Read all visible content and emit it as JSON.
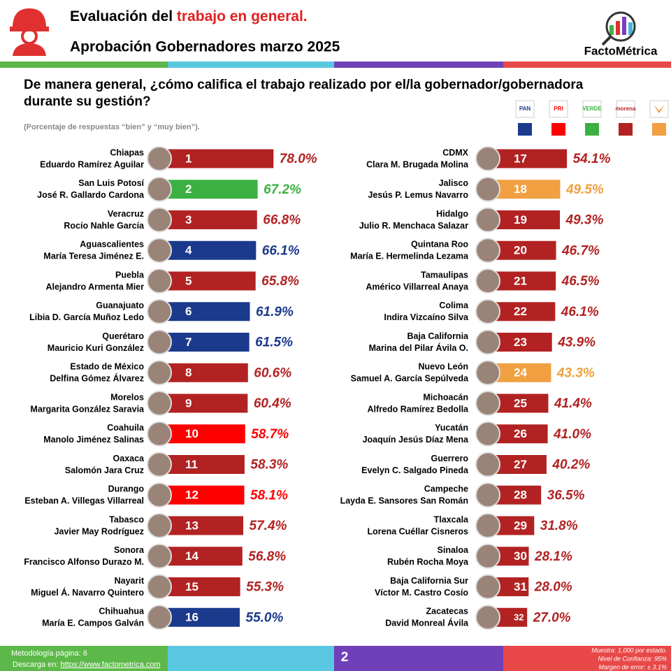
{
  "header": {
    "title_parts": [
      "Evaluación del ",
      "trabajo en general."
    ],
    "subtitle": "Aprobación Gobernadores marzo 2025",
    "brand": "FactoMétrica"
  },
  "chart_data": {
    "type": "bar",
    "orientation": "horizontal",
    "title": "De manera general, ¿cómo califica el trabajo realizado por el/la gobernador/gobernadora durante su gestión?",
    "subtitle": "(Porcentaje de respuestas “bien” y “muy bien”).",
    "xlim": [
      0,
      100
    ],
    "legend": [
      {
        "label": "PAN",
        "color": "#1b3a8c"
      },
      {
        "label": "PRI",
        "color": "#ff0000"
      },
      {
        "label": "VERDE",
        "color": "#3cb043"
      },
      {
        "label": "morena",
        "color": "#b22222"
      },
      {
        "color": "#f0a040"
      }
    ],
    "rows": [
      {
        "state": "Chiapas",
        "name": "Eduardo Ramírez Aguilar",
        "rank": 1,
        "value": 78.0,
        "value_label": "78.0%",
        "color": "#b22222"
      },
      {
        "state": "San Luis Potosí",
        "name": "José R. Gallardo Cardona",
        "rank": 2,
        "value": 67.2,
        "value_label": "67.2%",
        "color": "#3cb043"
      },
      {
        "state": "Veracruz",
        "name": "Rocío Nahle García",
        "rank": 3,
        "value": 66.8,
        "value_label": "66.8%",
        "color": "#b22222"
      },
      {
        "state": "Aguascalientes",
        "name": "María Teresa Jiménez E.",
        "rank": 4,
        "value": 66.1,
        "value_label": "66.1%",
        "color": "#1b3a8c"
      },
      {
        "state": "Puebla",
        "name": "Alejandro Armenta Mier",
        "rank": 5,
        "value": 65.8,
        "value_label": "65.8%",
        "color": "#b22222"
      },
      {
        "state": "Guanajuato",
        "name": "Libia D. García Muñoz Ledo",
        "rank": 6,
        "value": 61.9,
        "value_label": "61.9%",
        "color": "#1b3a8c"
      },
      {
        "state": "Querétaro",
        "name": "Mauricio Kuri González",
        "rank": 7,
        "value": 61.5,
        "value_label": "61.5%",
        "color": "#1b3a8c"
      },
      {
        "state": "Estado de México",
        "name": "Delfina Gómez Álvarez",
        "rank": 8,
        "value": 60.6,
        "value_label": "60.6%",
        "color": "#b22222"
      },
      {
        "state": "Morelos",
        "name": "Margarita González Saravia",
        "rank": 9,
        "value": 60.4,
        "value_label": "60.4%",
        "color": "#b22222"
      },
      {
        "state": "Coahuila",
        "name": "Manolo Jiménez Salinas",
        "rank": 10,
        "value": 58.7,
        "value_label": "58.7%",
        "color": "#ff0000"
      },
      {
        "state": "Oaxaca",
        "name": "Salomón Jara Cruz",
        "rank": 11,
        "value": 58.3,
        "value_label": "58.3%",
        "color": "#b22222"
      },
      {
        "state": "Durango",
        "name": "Esteban A. Villegas Villarreal",
        "rank": 12,
        "value": 58.1,
        "value_label": "58.1%",
        "color": "#ff0000"
      },
      {
        "state": "Tabasco",
        "name": "Javier May Rodríguez",
        "rank": 13,
        "value": 57.4,
        "value_label": "57.4%",
        "color": "#b22222"
      },
      {
        "state": "Sonora",
        "name": "Francisco Alfonso Durazo M.",
        "rank": 14,
        "value": 56.8,
        "value_label": "56.8%",
        "color": "#b22222"
      },
      {
        "state": "Nayarit",
        "name": "Miguel Á. Navarro Quintero",
        "rank": 15,
        "value": 55.3,
        "value_label": "55.3%",
        "color": "#b22222"
      },
      {
        "state": "Chihuahua",
        "name": "María E. Campos Galván",
        "rank": 16,
        "value": 55.0,
        "value_label": "55.0%",
        "color": "#1b3a8c"
      },
      {
        "state": "CDMX",
        "name": "Clara M. Brugada Molina",
        "rank": 17,
        "value": 54.1,
        "value_label": "54.1%",
        "color": "#b22222"
      },
      {
        "state": "Jalisco",
        "name": "Jesús P. Lemus Navarro",
        "rank": 18,
        "value": 49.5,
        "value_label": "49.5%",
        "color": "#f0a040"
      },
      {
        "state": "Hidalgo",
        "name": "Julio R. Menchaca Salazar",
        "rank": 19,
        "value": 49.3,
        "value_label": "49.3%",
        "color": "#b22222"
      },
      {
        "state": "Quintana Roo",
        "name": "María E. Hermelinda Lezama",
        "rank": 20,
        "value": 46.7,
        "value_label": "46.7%",
        "color": "#b22222"
      },
      {
        "state": "Tamaulipas",
        "name": "Américo Villarreal Anaya",
        "rank": 21,
        "value": 46.5,
        "value_label": "46.5%",
        "color": "#b22222"
      },
      {
        "state": "Colima",
        "name": "Indira Vizcaíno Silva",
        "rank": 22,
        "value": 46.1,
        "value_label": "46.1%",
        "color": "#b22222"
      },
      {
        "state": "Baja California",
        "name": "Marina del Pilar Ávila O.",
        "rank": 23,
        "value": 43.9,
        "value_label": "43.9%",
        "color": "#b22222"
      },
      {
        "state": "Nuevo León",
        "name": "Samuel A. García Sepúlveda",
        "rank": 24,
        "value": 43.3,
        "value_label": "43.3%",
        "color": "#f0a040"
      },
      {
        "state": "Michoacán",
        "name": "Alfredo Ramírez Bedolla",
        "rank": 25,
        "value": 41.4,
        "value_label": "41.4%",
        "color": "#b22222"
      },
      {
        "state": "Yucatán",
        "name": "Joaquín Jesús Díaz Mena",
        "rank": 26,
        "value": 41.0,
        "value_label": "41.0%",
        "color": "#b22222"
      },
      {
        "state": "Guerrero",
        "name": "Evelyn C. Salgado Pineda",
        "rank": 27,
        "value": 40.2,
        "value_label": "40.2%",
        "color": "#b22222"
      },
      {
        "state": "Campeche",
        "name": "Layda E. Sansores San Román",
        "rank": 28,
        "value": 36.5,
        "value_label": "36.5%",
        "color": "#b22222"
      },
      {
        "state": "Tlaxcala",
        "name": "Lorena Cuéllar Cisneros",
        "rank": 29,
        "value": 31.8,
        "value_label": "31.8%",
        "color": "#b22222"
      },
      {
        "state": "Sinaloa",
        "name": "Rubén Rocha Moya",
        "rank": 30,
        "value": 28.1,
        "value_label": "28.1%",
        "color": "#b22222"
      },
      {
        "state": "Baja California Sur",
        "name": "Víctor M. Castro Cosío",
        "rank": 31,
        "value": 28.0,
        "value_label": "28.0%",
        "color": "#b22222"
      },
      {
        "state": "Zacatecas",
        "name": "David Monreal Ávila",
        "rank": 32,
        "value": 27.0,
        "value_label": "27.0%",
        "color": "#b22222"
      }
    ]
  },
  "footer": {
    "method": "Metodología página: 6",
    "download": "Descarga en: ",
    "link": "https://www.factometrica.com",
    "page": "2",
    "notes": [
      "Muestra:  1,000 por estado.",
      "Nivel de Confianza: 95%",
      "Margen de error: ± 3.1%"
    ]
  }
}
